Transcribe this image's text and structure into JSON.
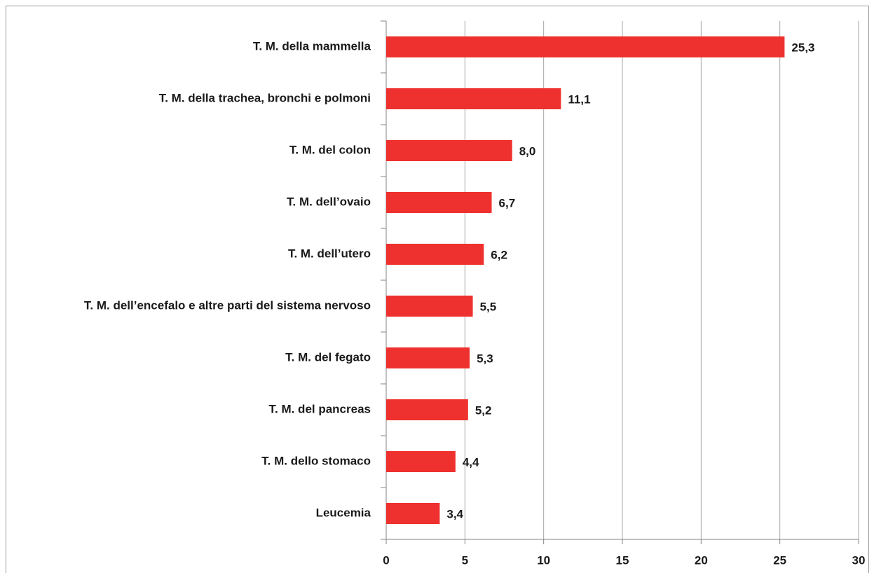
{
  "chart_data": {
    "type": "bar",
    "orientation": "horizontal",
    "categories": [
      "T. M. della mammella",
      "T. M. della trachea, bronchi e polmoni",
      "T. M. del colon",
      "T. M. dell’ovaio",
      "T. M. dell’utero",
      "T. M. dell’encefalo e altre parti del sistema nervoso",
      "T. M. del fegato",
      "T. M. del pancreas",
      "T. M. dello stomaco",
      "Leucemia"
    ],
    "values": [
      25.3,
      11.1,
      8.0,
      6.7,
      6.2,
      5.5,
      5.3,
      5.2,
      4.4,
      3.4
    ],
    "value_labels": [
      "25,3",
      "11,1",
      "8,0",
      "6,7",
      "6,2",
      "5,5",
      "5,3",
      "5,2",
      "4,4",
      "3,4"
    ],
    "color": "#ee312e",
    "xlim": [
      0,
      30
    ],
    "xticks": [
      0,
      5,
      10,
      15,
      20,
      25,
      30
    ],
    "grid": true
  }
}
